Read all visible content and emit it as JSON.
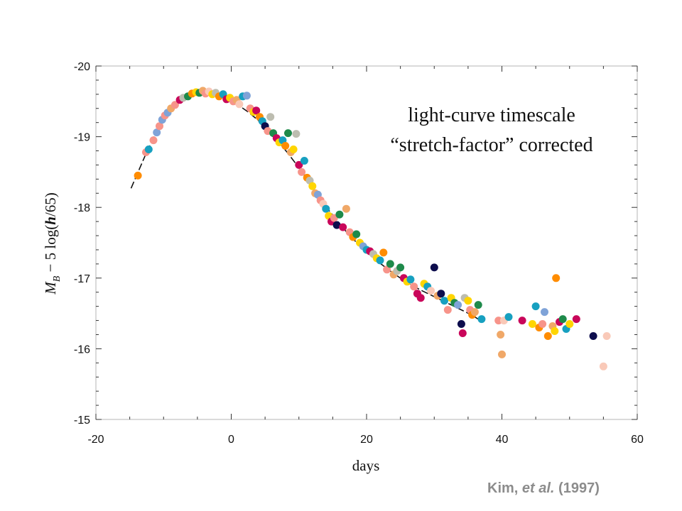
{
  "chart_data": {
    "type": "scatter",
    "annotation": [
      "light-curve timescale",
      "“stretch-factor” corrected"
    ],
    "xlabel": "days",
    "ylabel": {
      "main": "M",
      "sub": "B",
      "rest": " − 5 log(",
      "h": "h",
      "tail": "/65)"
    },
    "xlim": [
      -20,
      60
    ],
    "ylim": [
      -20,
      -15
    ],
    "y_inverted": true,
    "xticks": [
      -20,
      0,
      20,
      40,
      60
    ],
    "yticks": [
      -20,
      -19,
      -18,
      -17,
      -16,
      -15
    ],
    "xtick_labels": [
      "-20",
      "0",
      "20",
      "40",
      "60"
    ],
    "ytick_labels": [
      "-20",
      "-19",
      "-18",
      "-17",
      "-16",
      "-15"
    ],
    "grid": false,
    "palette": [
      "#0d0d4d",
      "#ff8c00",
      "#c9065a",
      "#f0a868",
      "#17a0c0",
      "#f7948a",
      "#ffd500",
      "#1e8a4a",
      "#7fa3d8",
      "#bdbdb0",
      "#f9c9b8"
    ],
    "template_curve": [
      [
        -14.8,
        -18.27
      ],
      [
        -14,
        -18.45
      ],
      [
        -12.5,
        -18.78
      ],
      [
        -11,
        -19.07
      ],
      [
        -9.5,
        -19.3
      ],
      [
        -8,
        -19.48
      ],
      [
        -6.5,
        -19.58
      ],
      [
        -5,
        -19.63
      ],
      [
        -3.5,
        -19.62
      ],
      [
        -2,
        -19.58
      ],
      [
        -0.5,
        -19.53
      ],
      [
        1,
        -19.45
      ],
      [
        2.5,
        -19.35
      ],
      [
        4,
        -19.23
      ],
      [
        5.5,
        -19.09
      ],
      [
        7,
        -18.93
      ],
      [
        8.5,
        -18.75
      ],
      [
        10,
        -18.56
      ],
      [
        11.5,
        -18.36
      ],
      [
        13,
        -18.15
      ],
      [
        14.5,
        -17.95
      ],
      [
        16,
        -17.77
      ],
      [
        17.5,
        -17.6
      ],
      [
        19,
        -17.46
      ],
      [
        20.5,
        -17.33
      ],
      [
        22,
        -17.21
      ],
      [
        23.5,
        -17.1
      ],
      [
        25,
        -17.0
      ],
      [
        26.5,
        -16.91
      ],
      [
        28,
        -16.83
      ],
      [
        29.5,
        -16.76
      ],
      [
        31,
        -16.69
      ],
      [
        32.5,
        -16.62
      ],
      [
        34,
        -16.55
      ],
      [
        35.5,
        -16.48
      ],
      [
        37,
        -16.39
      ]
    ],
    "points": [
      [
        -13.8,
        -18.45,
        1
      ],
      [
        -12.6,
        -18.78,
        5
      ],
      [
        -12.2,
        -18.82,
        4
      ],
      [
        -11.5,
        -18.95,
        5
      ],
      [
        -11.0,
        -19.06,
        8
      ],
      [
        -10.6,
        -19.15,
        5
      ],
      [
        -10.2,
        -19.24,
        8
      ],
      [
        -9.8,
        -19.3,
        5
      ],
      [
        -9.4,
        -19.34,
        8
      ],
      [
        -8.9,
        -19.4,
        3
      ],
      [
        -8.3,
        -19.45,
        5
      ],
      [
        -7.6,
        -19.52,
        2
      ],
      [
        -7.1,
        -19.55,
        9
      ],
      [
        -6.4,
        -19.57,
        7
      ],
      [
        -5.8,
        -19.61,
        1
      ],
      [
        -5.2,
        -19.63,
        6
      ],
      [
        -4.7,
        -19.62,
        7
      ],
      [
        -4.2,
        -19.65,
        3
      ],
      [
        -3.8,
        -19.61,
        5
      ],
      [
        -3.3,
        -19.64,
        10
      ],
      [
        -2.8,
        -19.6,
        6
      ],
      [
        -2.3,
        -19.62,
        9
      ],
      [
        -1.8,
        -19.57,
        1
      ],
      [
        -1.2,
        -19.6,
        4
      ],
      [
        -0.7,
        -19.53,
        2
      ],
      [
        -0.2,
        -19.55,
        6
      ],
      [
        0.3,
        -19.5,
        5
      ],
      [
        0.8,
        -19.52,
        3
      ],
      [
        1.2,
        -19.46,
        10
      ],
      [
        1.7,
        -19.57,
        4
      ],
      [
        2.3,
        -19.58,
        8
      ],
      [
        2.8,
        -19.4,
        5
      ],
      [
        3.3,
        -19.35,
        6
      ],
      [
        3.7,
        -19.37,
        2
      ],
      [
        4.2,
        -19.28,
        1
      ],
      [
        4.6,
        -19.22,
        4
      ],
      [
        5.0,
        -19.15,
        0
      ],
      [
        5.4,
        -19.08,
        5
      ],
      [
        5.8,
        -19.28,
        9
      ],
      [
        6.2,
        -19.05,
        7
      ],
      [
        6.7,
        -18.98,
        2
      ],
      [
        7.1,
        -18.92,
        6
      ],
      [
        7.6,
        -18.95,
        4
      ],
      [
        8.0,
        -18.87,
        1
      ],
      [
        8.4,
        -19.05,
        7
      ],
      [
        8.8,
        -18.78,
        3
      ],
      [
        9.2,
        -18.82,
        6
      ],
      [
        9.6,
        -19.04,
        9
      ],
      [
        10.0,
        -18.6,
        2
      ],
      [
        10.4,
        -18.5,
        5
      ],
      [
        10.8,
        -18.66,
        4
      ],
      [
        11.2,
        -18.42,
        1
      ],
      [
        11.6,
        -18.38,
        9
      ],
      [
        12.0,
        -18.3,
        6
      ],
      [
        12.4,
        -18.2,
        3
      ],
      [
        12.8,
        -18.18,
        8
      ],
      [
        13.2,
        -18.1,
        5
      ],
      [
        13.6,
        -18.05,
        10
      ],
      [
        14.0,
        -17.98,
        4
      ],
      [
        14.4,
        -17.88,
        6
      ],
      [
        14.8,
        -17.8,
        2
      ],
      [
        15.2,
        -17.85,
        5
      ],
      [
        15.6,
        -17.75,
        0
      ],
      [
        16.0,
        -17.9,
        7
      ],
      [
        16.5,
        -17.72,
        2
      ],
      [
        17.0,
        -17.98,
        3
      ],
      [
        17.5,
        -17.65,
        5
      ],
      [
        18.0,
        -17.58,
        1
      ],
      [
        18.5,
        -17.62,
        7
      ],
      [
        19.0,
        -17.5,
        6
      ],
      [
        19.5,
        -17.45,
        8
      ],
      [
        20.0,
        -17.4,
        4
      ],
      [
        20.5,
        -17.38,
        2
      ],
      [
        21.0,
        -17.34,
        9
      ],
      [
        21.5,
        -17.28,
        6
      ],
      [
        22.0,
        -17.25,
        4
      ],
      [
        22.5,
        -17.36,
        1
      ],
      [
        23.0,
        -17.12,
        5
      ],
      [
        23.5,
        -17.2,
        7
      ],
      [
        24.0,
        -17.05,
        3
      ],
      [
        24.5,
        -17.1,
        9
      ],
      [
        25.0,
        -17.15,
        7
      ],
      [
        25.5,
        -17.0,
        2
      ],
      [
        26.0,
        -16.95,
        6
      ],
      [
        26.5,
        -16.98,
        4
      ],
      [
        27.0,
        -16.88,
        5
      ],
      [
        27.5,
        -16.78,
        2
      ],
      [
        28.0,
        -16.72,
        2
      ],
      [
        28.5,
        -16.92,
        6
      ],
      [
        29.0,
        -16.88,
        4
      ],
      [
        29.5,
        -16.82,
        10
      ],
      [
        30.0,
        -17.15,
        0
      ],
      [
        30.5,
        -16.75,
        3
      ],
      [
        31.0,
        -16.78,
        0
      ],
      [
        31.5,
        -16.68,
        4
      ],
      [
        32.0,
        -16.55,
        5
      ],
      [
        32.5,
        -16.72,
        6
      ],
      [
        33.0,
        -16.65,
        7
      ],
      [
        33.5,
        -16.62,
        8
      ],
      [
        34.0,
        -16.35,
        0
      ],
      [
        34.2,
        -16.22,
        2
      ],
      [
        34.5,
        -16.72,
        9
      ],
      [
        35.0,
        -16.68,
        6
      ],
      [
        35.3,
        -16.55,
        5
      ],
      [
        35.6,
        -16.48,
        1
      ],
      [
        36.0,
        -16.52,
        3
      ],
      [
        36.5,
        -16.62,
        7
      ],
      [
        37.0,
        -16.42,
        4
      ],
      [
        39.5,
        -16.4,
        5
      ],
      [
        39.8,
        -16.2,
        3
      ],
      [
        40.0,
        -15.92,
        3
      ],
      [
        40.3,
        -16.4,
        10
      ],
      [
        41.0,
        -16.45,
        4
      ],
      [
        43.0,
        -16.4,
        2
      ],
      [
        44.5,
        -16.35,
        6
      ],
      [
        45.0,
        -16.6,
        4
      ],
      [
        45.5,
        -16.3,
        1
      ],
      [
        46.0,
        -16.35,
        5
      ],
      [
        46.3,
        -16.52,
        8
      ],
      [
        46.8,
        -16.18,
        1
      ],
      [
        47.5,
        -16.32,
        3
      ],
      [
        47.8,
        -16.25,
        6
      ],
      [
        48.0,
        -17.0,
        1
      ],
      [
        48.5,
        -16.38,
        2
      ],
      [
        49.0,
        -16.42,
        7
      ],
      [
        49.5,
        -16.28,
        4
      ],
      [
        50.0,
        -16.35,
        6
      ],
      [
        51.0,
        -16.42,
        2
      ],
      [
        53.5,
        -16.18,
        0
      ],
      [
        55.0,
        -15.75,
        10
      ],
      [
        55.5,
        -16.18,
        10
      ]
    ]
  },
  "credit": {
    "author": "Kim, ",
    "etal": "et al.",
    "year": " (1997)"
  }
}
